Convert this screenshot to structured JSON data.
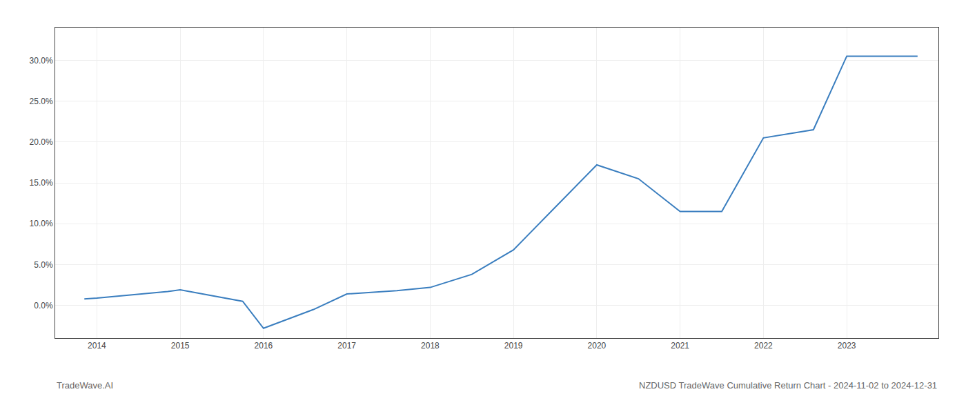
{
  "chart_data": {
    "type": "line",
    "x": [
      2013.85,
      2014.0,
      2014.85,
      2015.0,
      2015.75,
      2016.0,
      2016.6,
      2017.0,
      2017.6,
      2018.0,
      2018.5,
      2019.0,
      2019.5,
      2020.0,
      2020.5,
      2021.0,
      2021.5,
      2022.0,
      2022.6,
      2023.0,
      2023.85
    ],
    "values": [
      0.008,
      0.009,
      0.017,
      0.019,
      0.005,
      -0.028,
      -0.005,
      0.014,
      0.018,
      0.022,
      0.038,
      0.068,
      0.12,
      0.172,
      0.155,
      0.115,
      0.115,
      0.205,
      0.215,
      0.305,
      0.305
    ],
    "color": "#3a7ebf",
    "xlim": [
      2013.5,
      2024.1
    ],
    "xticks": [
      2014,
      2015,
      2016,
      2017,
      2018,
      2019,
      2020,
      2021,
      2022,
      2023
    ],
    "ylim": [
      -0.04,
      0.34
    ],
    "yticks": [
      {
        "value": 0.0,
        "label": "0.0%"
      },
      {
        "value": 0.05,
        "label": "5.0%"
      },
      {
        "value": 0.1,
        "label": "10.0%"
      },
      {
        "value": 0.15,
        "label": "15.0%"
      },
      {
        "value": 0.2,
        "label": "20.0%"
      },
      {
        "value": 0.25,
        "label": "25.0%"
      },
      {
        "value": 0.3,
        "label": "30.0%"
      }
    ],
    "grid": true,
    "annotations": [
      "TradeWave.AI",
      "NZDUSD TradeWave Cumulative Return Chart - 2024-11-02 to 2024-12-31"
    ]
  }
}
